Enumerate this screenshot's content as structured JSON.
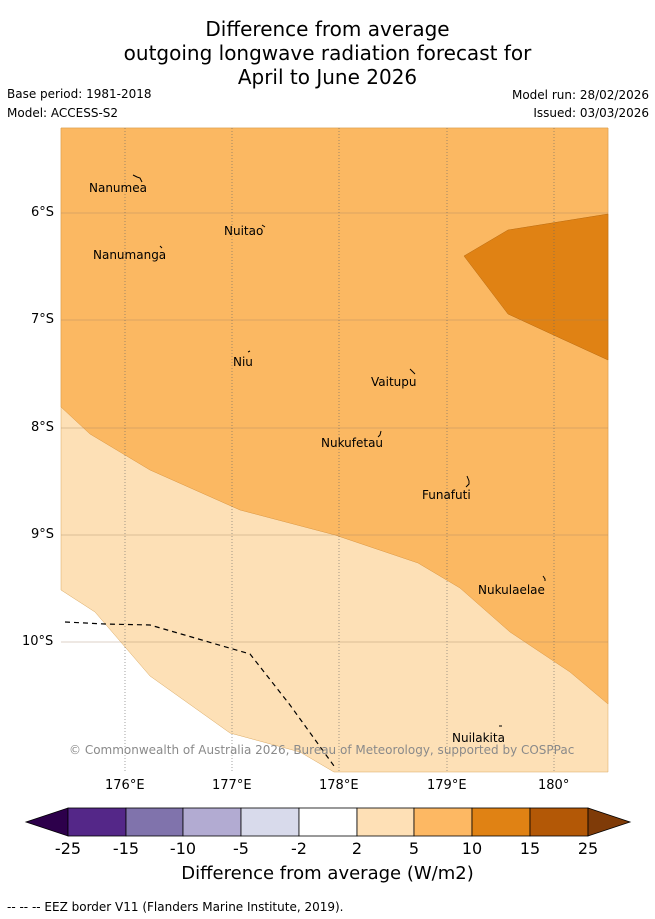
{
  "title": {
    "line1": "Difference from average",
    "line2": "outgoing longwave radiation forecast for",
    "line3": "April to June 2026"
  },
  "meta": {
    "base_period": "Base period: 1981-2018",
    "model": "Model: ACCESS-S2",
    "model_run": "Model run: 28/02/2026",
    "issued": "Issued: 03/03/2026"
  },
  "map": {
    "lat_labels": [
      "6°S",
      "7°S",
      "8°S",
      "9°S",
      "10°S"
    ],
    "lon_labels": [
      "176°E",
      "177°E",
      "178°E",
      "179°E",
      "180°"
    ],
    "places": [
      {
        "name": "Nanumea"
      },
      {
        "name": "Nuitao"
      },
      {
        "name": "Nanumanga"
      },
      {
        "name": "Niu"
      },
      {
        "name": "Vaitupu"
      },
      {
        "name": "Nukufetau"
      },
      {
        "name": "Funafuti"
      },
      {
        "name": "Nukulaelae"
      },
      {
        "name": "Nuilakita"
      }
    ],
    "copyright": "© Commonwealth of Australia 2026, Bureau of Meteorology, supported by COSPPac",
    "colors": {
      "band_5_10": "#fbb862",
      "band_2_5": "#fde0b6",
      "band_10_15": "#e08214",
      "neutral": "#ffffff"
    }
  },
  "colorbar": {
    "labels": [
      "-25",
      "-15",
      "-10",
      "-5",
      "-2",
      "2",
      "5",
      "10",
      "15",
      "25"
    ],
    "colors": [
      "#2d004b",
      "#542788",
      "#8073ac",
      "#b2abd2",
      "#d8daeb",
      "#ffffff",
      "#fee0b6",
      "#fdb863",
      "#e08214",
      "#b35806",
      "#7f3b08"
    ],
    "title": "Difference from average (W/m2)"
  },
  "footer": "-- -- -- EEZ border V11 (Flanders Marine Institute, 2019)."
}
